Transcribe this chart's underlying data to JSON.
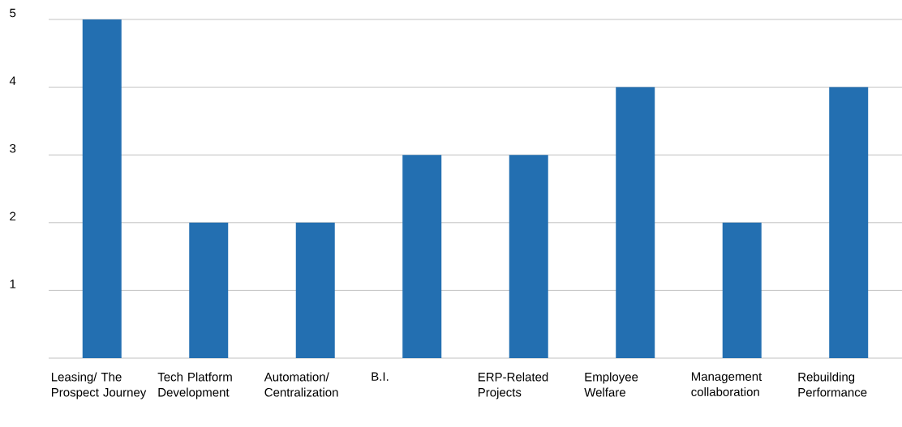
{
  "chart_data": {
    "type": "bar",
    "categories": [
      "Leasing/ The Prospect Journey",
      "Tech Platform Development",
      "Automation/ Centralization",
      "B.I.",
      "ERP-Related Projects",
      "Employee Welfare",
      "Management collaboration",
      "Rebuilding Performance"
    ],
    "values": [
      5,
      2,
      2,
      3,
      3,
      4,
      2,
      4
    ],
    "color": "#236fb1",
    "ylim": [
      0,
      5
    ],
    "yticks": [
      {
        "value": 0,
        "label": null
      },
      1,
      2,
      3,
      4,
      5
    ],
    "grid": "y"
  }
}
